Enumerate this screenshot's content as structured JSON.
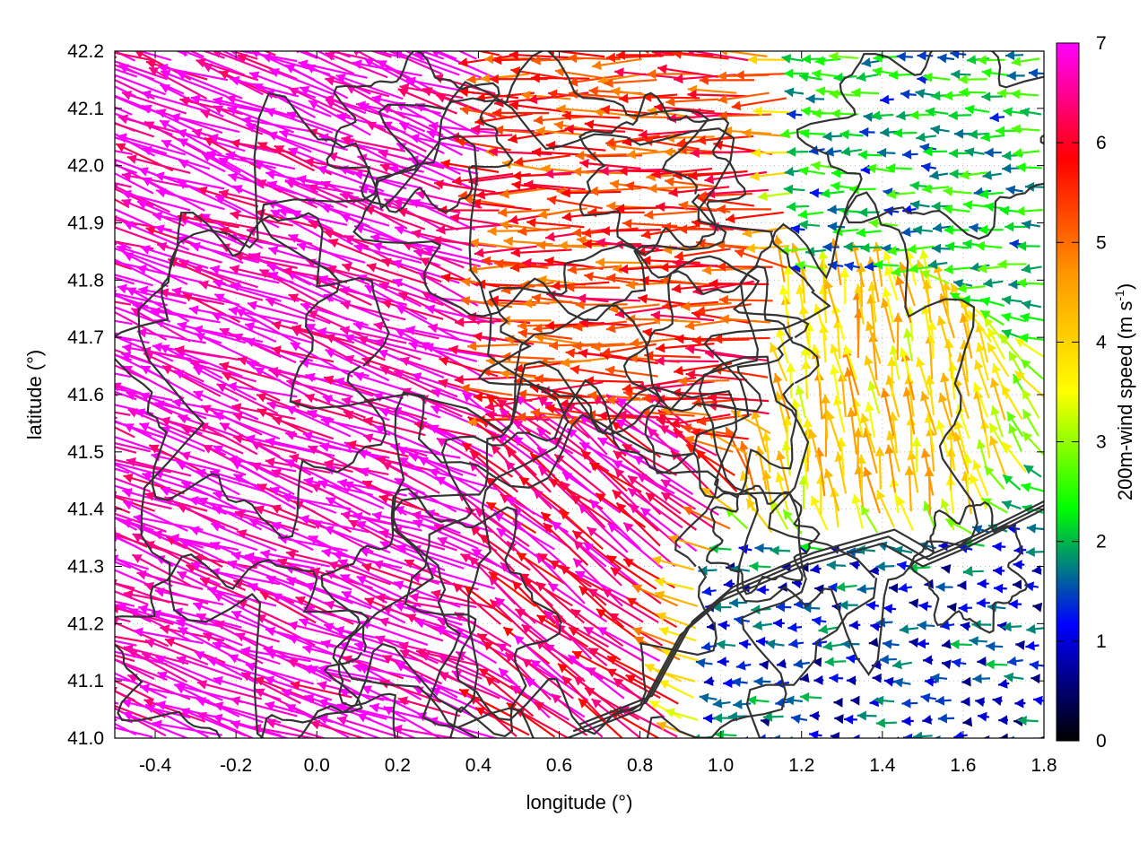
{
  "chart_data": {
    "type": "vector-field",
    "title": "",
    "xlabel": "longitude (°)",
    "ylabel": "latitude (°)",
    "xlim": [
      -0.5,
      1.8
    ],
    "ylim": [
      41.0,
      42.2
    ],
    "x_ticks": [
      "-0.4",
      "-0.2",
      "0.0",
      "0.2",
      "0.4",
      "0.6",
      "0.8",
      "1.0",
      "1.2",
      "1.4",
      "1.6",
      "1.8"
    ],
    "y_ticks": [
      "41.0",
      "41.1",
      "41.2",
      "41.3",
      "41.4",
      "41.5",
      "41.6",
      "41.7",
      "41.8",
      "41.9",
      "42.0",
      "42.1",
      "42.2"
    ],
    "grid": "dotted",
    "colorbar": {
      "label": "200m-wind speed (m s",
      "label_superscript": "-1",
      "label_close": ")",
      "range": [
        0,
        7
      ],
      "ticks": [
        "0",
        "1",
        "2",
        "3",
        "4",
        "5",
        "6",
        "7"
      ],
      "colormap": [
        "#000000",
        "#0000ff",
        "#00ff00",
        "#ffff00",
        "#ff9900",
        "#ff0000",
        "#ff00ff"
      ]
    },
    "contour_color": "#333333",
    "wind_field_regions": [
      {
        "region": "west",
        "lon_range": [
          -0.5,
          0.45
        ],
        "lat_range": [
          41.0,
          42.2
        ],
        "speed": 7,
        "direction_to": "west-northwest"
      },
      {
        "region": "north-central",
        "lon_range": [
          0.45,
          1.15
        ],
        "lat_range": [
          41.55,
          42.2
        ],
        "speed": 5.5,
        "direction_to": "west"
      },
      {
        "region": "south-central",
        "lon_range": [
          0.45,
          0.95
        ],
        "lat_range": [
          41.0,
          41.55
        ],
        "speed": 6.5,
        "direction_to": "northwest"
      },
      {
        "region": "east-central",
        "lon_range": [
          1.15,
          1.55
        ],
        "lat_range": [
          41.4,
          41.8
        ],
        "speed": 4,
        "direction_to": "north"
      },
      {
        "region": "northeast",
        "lon_range": [
          1.2,
          1.8
        ],
        "lat_range": [
          41.8,
          42.2
        ],
        "speed": 2,
        "direction_to": "west"
      },
      {
        "region": "southeast-coast",
        "lon_range": [
          0.9,
          1.8
        ],
        "lat_range": [
          41.0,
          41.3
        ],
        "speed": 1.3,
        "direction_to": "west"
      }
    ]
  }
}
